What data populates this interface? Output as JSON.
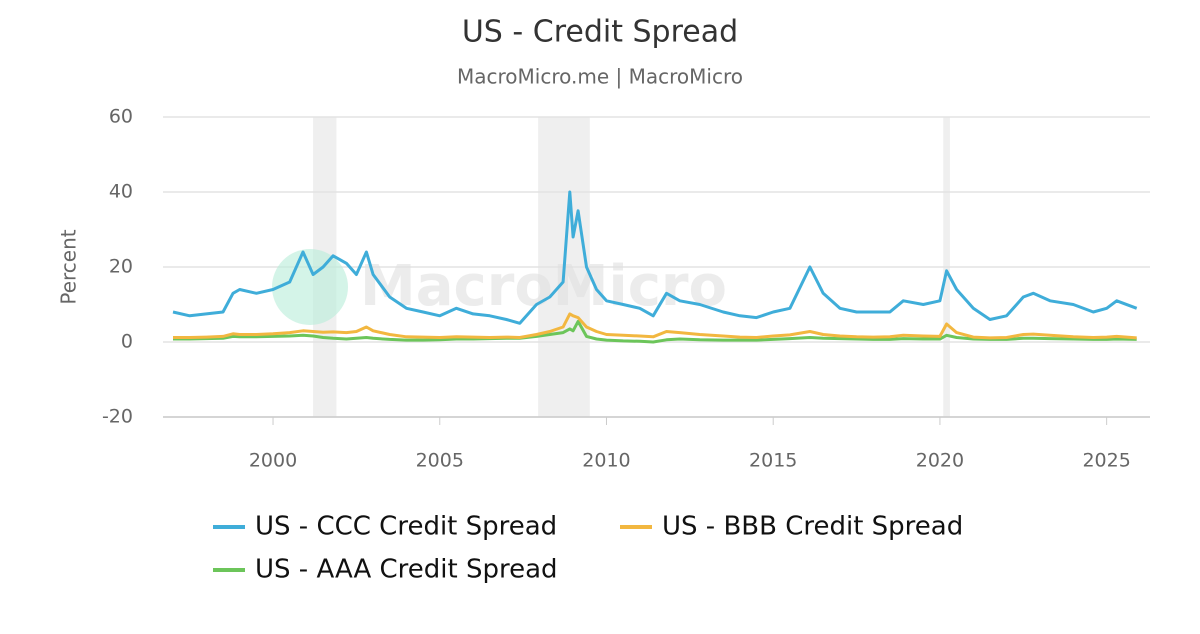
{
  "chart_data": {
    "type": "line",
    "title": "US - Credit Spread",
    "subtitle": "MacroMicro.me | MacroMicro",
    "watermark": "MacroMicro",
    "y_label": "Percent",
    "x": [
      1997.0,
      1997.5,
      1998.0,
      1998.5,
      1998.8,
      1999.0,
      1999.5,
      2000.0,
      2000.5,
      2000.9,
      2001.2,
      2001.5,
      2001.8,
      2002.2,
      2002.5,
      2002.8,
      2003.0,
      2003.5,
      2004.0,
      2004.5,
      2005.0,
      2005.5,
      2006.0,
      2006.5,
      2007.0,
      2007.4,
      2007.9,
      2008.3,
      2008.7,
      2008.9,
      2009.0,
      2009.15,
      2009.4,
      2009.7,
      2010.0,
      2010.5,
      2011.0,
      2011.4,
      2011.8,
      2012.2,
      2012.8,
      2013.5,
      2014.0,
      2014.5,
      2015.0,
      2015.5,
      2016.1,
      2016.5,
      2017.0,
      2017.5,
      2018.0,
      2018.5,
      2018.9,
      2019.5,
      2020.0,
      2020.2,
      2020.5,
      2021.0,
      2021.5,
      2022.0,
      2022.5,
      2022.8,
      2023.3,
      2024.0,
      2024.6,
      2025.0,
      2025.3,
      2025.9
    ],
    "series": [
      {
        "name": "US - CCC Credit Spread",
        "color": "#3fadd9",
        "values": [
          8,
          7,
          7.5,
          8,
          13,
          14,
          13,
          14,
          16,
          24,
          18,
          20,
          23,
          21,
          18,
          24,
          18,
          12,
          9,
          8,
          7,
          9,
          7.5,
          7,
          6,
          5,
          10,
          12,
          16,
          40,
          28,
          35,
          20,
          14,
          11,
          10,
          9,
          7,
          13,
          11,
          10,
          8,
          7,
          6.5,
          8,
          9,
          20,
          13,
          9,
          8,
          8,
          8,
          11,
          10,
          11,
          19,
          14,
          9,
          6,
          7,
          12,
          13,
          11,
          10,
          8,
          9,
          11,
          9
        ]
      },
      {
        "name": "US - BBB Credit Spread",
        "color": "#f2b740",
        "values": [
          1.2,
          1.2,
          1.3,
          1.5,
          2.2,
          2.0,
          2.0,
          2.2,
          2.5,
          3.0,
          2.8,
          2.6,
          2.7,
          2.5,
          2.8,
          4.0,
          3.0,
          2.0,
          1.4,
          1.3,
          1.2,
          1.4,
          1.3,
          1.2,
          1.3,
          1.2,
          2.0,
          2.8,
          4.0,
          7.5,
          7,
          6.5,
          4,
          2.8,
          2.0,
          1.8,
          1.6,
          1.4,
          2.8,
          2.5,
          2.0,
          1.6,
          1.3,
          1.2,
          1.6,
          1.9,
          2.8,
          2.0,
          1.6,
          1.4,
          1.3,
          1.4,
          1.8,
          1.6,
          1.5,
          4.8,
          2.5,
          1.3,
          1.1,
          1.2,
          2.0,
          2.1,
          1.8,
          1.4,
          1.2,
          1.3,
          1.5,
          1.1
        ]
      },
      {
        "name": "US - AAA Credit Spread",
        "color": "#6cc55a",
        "values": [
          0.8,
          0.8,
          0.9,
          1.0,
          1.5,
          1.4,
          1.4,
          1.5,
          1.6,
          1.8,
          1.6,
          1.2,
          1.0,
          0.8,
          1.0,
          1.2,
          1.0,
          0.7,
          0.5,
          0.5,
          0.6,
          0.8,
          0.8,
          0.9,
          1.0,
          1.0,
          1.5,
          2.0,
          2.5,
          3.5,
          3.0,
          5.5,
          1.5,
          0.8,
          0.5,
          0.3,
          0.2,
          0,
          0.6,
          0.8,
          0.6,
          0.5,
          0.5,
          0.5,
          0.7,
          0.9,
          1.2,
          1.0,
          0.9,
          0.8,
          0.7,
          0.7,
          0.9,
          0.8,
          0.8,
          1.8,
          1.2,
          0.8,
          0.7,
          0.7,
          1.0,
          1.0,
          0.9,
          0.8,
          0.7,
          0.7,
          0.8,
          0.7
        ]
      }
    ],
    "shaded_periods": [
      [
        2001.2,
        2001.9
      ],
      [
        2007.95,
        2009.5
      ],
      [
        2020.1,
        2020.3
      ]
    ],
    "shade_color": "#efefef",
    "xlim": [
      1996.7,
      2026.3
    ],
    "ylim": [
      -20,
      60
    ],
    "xticks": [
      2000,
      2005,
      2010,
      2015,
      2020,
      2025
    ],
    "yticks": [
      -20,
      0,
      20,
      40,
      60
    ],
    "grid": true
  }
}
